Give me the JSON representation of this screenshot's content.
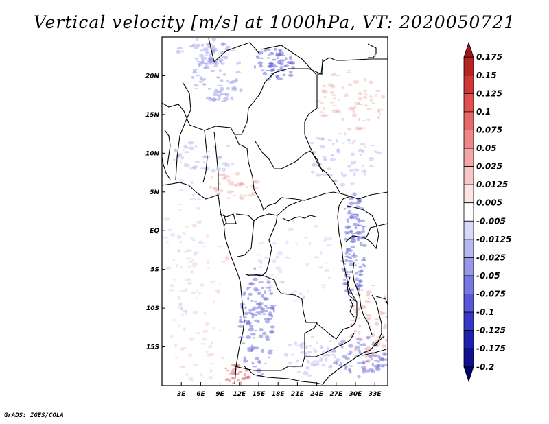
{
  "title": "Vertical velocity [m/s] at 1000hPa, VT: 2020050721",
  "footer": "GrADS: IGES/COLA",
  "colors": {
    "frame": "#000000",
    "coast": "#000000",
    "positive_shade": "#e89a9a",
    "negative_shade": "#8a8ae8"
  },
  "map": {
    "lon_range": [
      0,
      35
    ],
    "lat_range": [
      -20,
      25
    ],
    "x_ticks": [
      {
        "value": 3,
        "label": "3E"
      },
      {
        "value": 6,
        "label": "6E"
      },
      {
        "value": 9,
        "label": "9E"
      },
      {
        "value": 12,
        "label": "12E"
      },
      {
        "value": 15,
        "label": "15E"
      },
      {
        "value": 18,
        "label": "18E"
      },
      {
        "value": 21,
        "label": "21E"
      },
      {
        "value": 24,
        "label": "24E"
      },
      {
        "value": 27,
        "label": "27E"
      },
      {
        "value": 30,
        "label": "30E"
      },
      {
        "value": 33,
        "label": "33E"
      }
    ],
    "y_ticks": [
      {
        "value": 20,
        "label": "20N"
      },
      {
        "value": 15,
        "label": "15N"
      },
      {
        "value": 10,
        "label": "10N"
      },
      {
        "value": 5,
        "label": "5N"
      },
      {
        "value": 0,
        "label": "EQ"
      },
      {
        "value": -5,
        "label": "5S"
      },
      {
        "value": -10,
        "label": "10S"
      },
      {
        "value": -15,
        "label": "15S"
      }
    ]
  },
  "colorbar": {
    "levels": [
      "0.175",
      "0.15",
      "0.125",
      "0.1",
      "0.075",
      "0.05",
      "0.025",
      "0.0125",
      "0.005",
      "-0.005",
      "-0.0125",
      "-0.025",
      "-0.05",
      "-0.075",
      "-0.1",
      "-0.125",
      "-0.175",
      "-0.2"
    ],
    "colors": [
      "#a01818",
      "#b82424",
      "#d03838",
      "#e05050",
      "#e66a6a",
      "#ec8888",
      "#f2a8a8",
      "#f8c8c8",
      "#fce4e4",
      "#ffffff",
      "#d8d8f8",
      "#b8b8f0",
      "#9898e8",
      "#7878e0",
      "#5858d8",
      "#3838c8",
      "#2020b0",
      "#101090",
      "#000070"
    ]
  }
}
